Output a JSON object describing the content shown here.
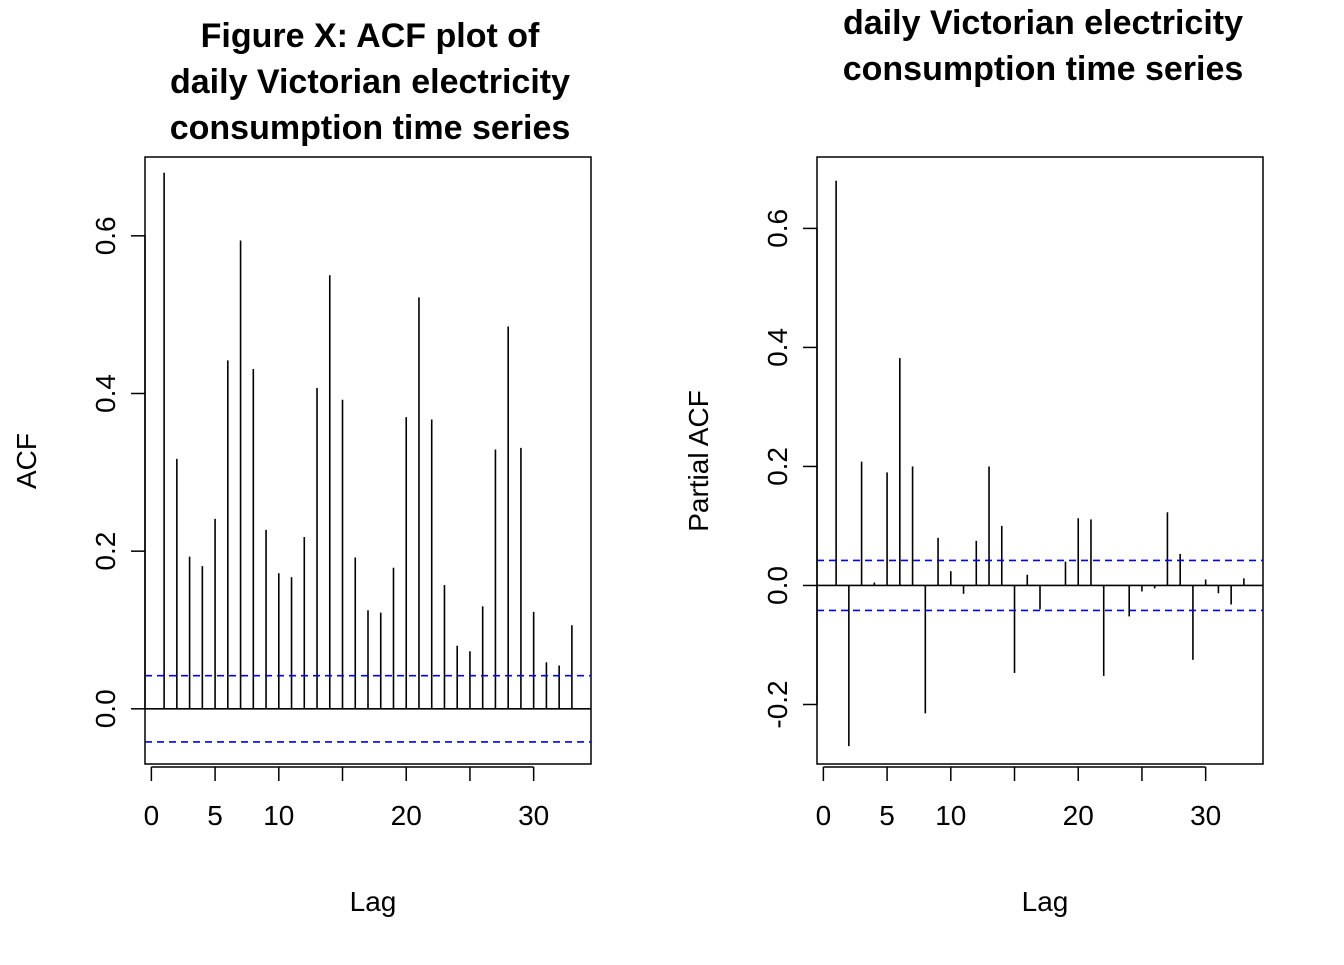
{
  "chart_data": [
    {
      "type": "bar",
      "title_lines": [
        "Figure X: ACF plot of",
        "daily Victorian electricity",
        "consumption time series"
      ],
      "xlabel": "Lag",
      "ylabel": "ACF",
      "xlim": [
        -0.5,
        34.5
      ],
      "ylim": [
        -0.07,
        0.7
      ],
      "xticks": [
        0,
        5,
        10,
        15,
        20,
        25,
        30
      ],
      "xtick_labels": [
        "0",
        "5",
        "10",
        "",
        "20",
        "",
        "30"
      ],
      "yticks": [
        0.0,
        0.2,
        0.4,
        0.6
      ],
      "ytick_labels": [
        "0.0",
        "0.2",
        "0.4",
        "0.6"
      ],
      "ci": 0.042,
      "lags": [
        1,
        2,
        3,
        4,
        5,
        6,
        7,
        8,
        9,
        10,
        11,
        12,
        13,
        14,
        15,
        16,
        17,
        18,
        19,
        20,
        21,
        22,
        23,
        24,
        25,
        26,
        27,
        28,
        29,
        30,
        31,
        32,
        33
      ],
      "values": [
        0.68,
        0.317,
        0.193,
        0.181,
        0.241,
        0.442,
        0.594,
        0.431,
        0.227,
        0.172,
        0.167,
        0.218,
        0.407,
        0.55,
        0.392,
        0.192,
        0.125,
        0.122,
        0.179,
        0.37,
        0.522,
        0.367,
        0.157,
        0.08,
        0.073,
        0.13,
        0.329,
        0.485,
        0.331,
        0.123,
        0.059,
        0.055,
        0.106
      ]
    },
    {
      "type": "bar",
      "title_lines": [
        "daily Victorian electricity",
        "consumption time series"
      ],
      "xlabel": "Lag",
      "ylabel": "Partial ACF",
      "xlim": [
        -0.5,
        34.5
      ],
      "ylim": [
        -0.3,
        0.72
      ],
      "xticks": [
        0,
        5,
        10,
        15,
        20,
        25,
        30
      ],
      "xtick_labels": [
        "0",
        "5",
        "10",
        "",
        "20",
        "",
        "30"
      ],
      "yticks": [
        -0.2,
        0.0,
        0.2,
        0.4,
        0.6
      ],
      "ytick_labels": [
        "-0.2",
        "0.0",
        "0.2",
        "0.4",
        "0.6"
      ],
      "ci": 0.042,
      "lags": [
        1,
        2,
        3,
        4,
        5,
        6,
        7,
        8,
        9,
        10,
        11,
        12,
        13,
        14,
        15,
        16,
        17,
        18,
        19,
        20,
        21,
        22,
        23,
        24,
        25,
        26,
        27,
        28,
        29,
        30,
        31,
        32,
        33
      ],
      "values": [
        0.68,
        -0.27,
        0.208,
        0.005,
        0.19,
        0.382,
        0.2,
        -0.215,
        0.08,
        0.024,
        -0.014,
        0.075,
        0.2,
        0.1,
        -0.147,
        0.018,
        -0.04,
        0.0,
        0.04,
        0.113,
        0.111,
        -0.152,
        0.0,
        -0.052,
        -0.01,
        -0.005,
        0.123,
        0.053,
        -0.125,
        0.01,
        -0.013,
        -0.032,
        0.012
      ]
    }
  ]
}
